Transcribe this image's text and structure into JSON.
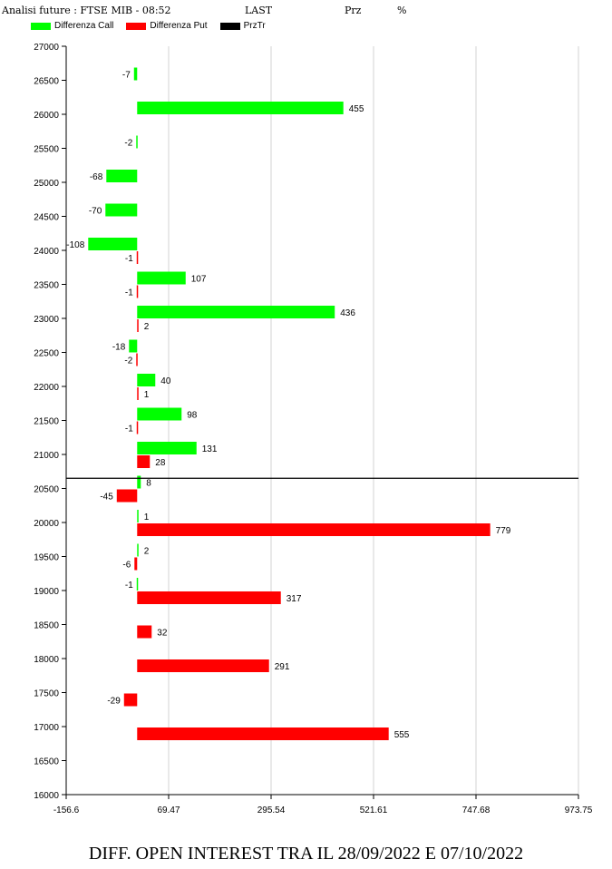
{
  "header": {
    "title": "Analisi future : FTSE MIB - 08:52",
    "last_label": "LAST",
    "prz_label": "Prz",
    "pct_label": "%"
  },
  "footer": {
    "text": "DIFF. OPEN INTEREST TRA IL 28/09/2022 E 07/10/2022"
  },
  "colors": {
    "call": "#00ff00",
    "put": "#ff0000",
    "przTr": "#000000",
    "grid": "#d3d3d3"
  },
  "chart_data": {
    "type": "bar",
    "orientation": "horizontal",
    "categories": [
      27000,
      26500,
      26000,
      25500,
      25000,
      24500,
      24000,
      23500,
      23000,
      22500,
      22000,
      21500,
      21000,
      20500,
      20000,
      19500,
      19000,
      18500,
      18000,
      17500,
      17000,
      16500,
      16000
    ],
    "series": [
      {
        "name": "Differenza Call",
        "values": [
          null,
          -7,
          455,
          -2,
          -68,
          -70,
          -108,
          107,
          436,
          -18,
          40,
          98,
          131,
          8,
          1,
          2,
          -1,
          null,
          null,
          null,
          null,
          null,
          null
        ]
      },
      {
        "name": "Differenza Put",
        "values": [
          null,
          null,
          null,
          null,
          null,
          null,
          -1,
          -1,
          2,
          -2,
          1,
          -1,
          28,
          -45,
          779,
          -6,
          317,
          32,
          291,
          -29,
          555,
          null,
          null
        ]
      }
    ],
    "reference_lines": [
      {
        "name": "PrzTr",
        "y": 20650
      }
    ],
    "xlim": [
      -156.6,
      973.75
    ],
    "xticks": [
      "-156.6",
      "69.47",
      "295.54",
      "521.61",
      "747.68",
      "973.75"
    ],
    "ylim": [
      16000,
      27000
    ],
    "yticks": [
      "27000",
      "26500",
      "26000",
      "25500",
      "25000",
      "24500",
      "24000",
      "23500",
      "23000",
      "22500",
      "22000",
      "21500",
      "21000",
      "20500",
      "20000",
      "19500",
      "19000",
      "18500",
      "18000",
      "17500",
      "17000",
      "16500",
      "16000"
    ],
    "grid": "vertical",
    "legend": "top-left"
  }
}
